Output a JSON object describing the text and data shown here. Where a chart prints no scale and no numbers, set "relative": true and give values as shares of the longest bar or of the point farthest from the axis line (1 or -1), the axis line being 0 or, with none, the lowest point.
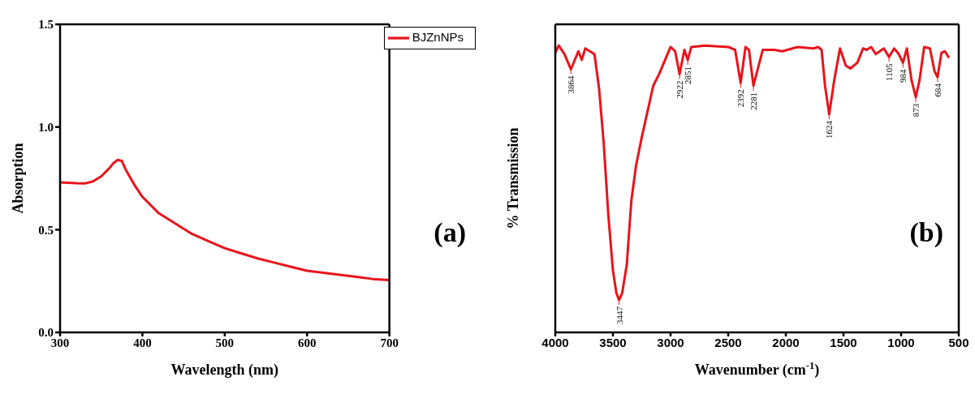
{
  "chart_data": [
    {
      "type": "line",
      "xlabel": "Wavelength (nm)",
      "ylabel": "Absorption",
      "xlim": [
        300,
        700
      ],
      "xticks": [
        300,
        400,
        500,
        600,
        700
      ],
      "ylim": [
        0,
        1.5
      ],
      "yticks": [
        {
          "value": 0,
          "label": "0.0"
        },
        0.5,
        {
          "value": 1,
          "label": "1.0"
        },
        1.5
      ],
      "legend": "top right",
      "annotations": [
        "(a)"
      ],
      "series": [
        {
          "name": "BJZnNPs",
          "color": "#e8141b",
          "x": [
            300,
            320,
            330,
            340,
            350,
            360,
            365,
            370,
            375,
            380,
            390,
            400,
            420,
            440,
            460,
            480,
            500,
            520,
            540,
            560,
            580,
            600,
            620,
            640,
            660,
            680,
            700
          ],
          "values": [
            0.73,
            0.726,
            0.725,
            0.735,
            0.76,
            0.8,
            0.825,
            0.84,
            0.835,
            0.79,
            0.72,
            0.66,
            0.58,
            0.53,
            0.48,
            0.445,
            0.41,
            0.385,
            0.36,
            0.34,
            0.32,
            0.3,
            0.29,
            0.28,
            0.27,
            0.26,
            0.255
          ]
        }
      ]
    },
    {
      "type": "line",
      "xlabel": "Wavenumber (cm$^{-1}$)",
      "ylabel": "% Transmission",
      "relative": true,
      "xlim": [
        4000,
        500
      ],
      "xticks": [
        4000,
        3500,
        3000,
        2500,
        2000,
        1500,
        1000,
        500
      ],
      "annotations": [
        "(b)",
        {
          "text": "3864",
          "x": 3864,
          "y": 0.917
        },
        {
          "text": "3447",
          "x": 3447,
          "y": 0.113
        },
        {
          "text": "2922",
          "x": 2922,
          "y": 0.9
        },
        {
          "text": "2851",
          "x": 2851,
          "y": 0.95
        },
        {
          "text": "2392",
          "x": 2392,
          "y": 0.87
        },
        {
          "text": "2281",
          "x": 2281,
          "y": 0.86
        },
        {
          "text": "1624",
          "x": 1624,
          "y": 0.76
        },
        {
          "text": "1105",
          "x": 1105,
          "y": 0.96
        },
        {
          "text": "984",
          "x": 984,
          "y": 0.94
        },
        {
          "text": "873",
          "x": 873,
          "y": 0.82
        },
        {
          "text": "684",
          "x": 684,
          "y": 0.89
        }
      ],
      "series": [
        {
          "color": "#e8141b",
          "x": [
            4000,
            3970,
            3920,
            3864,
            3800,
            3770,
            3740,
            3700,
            3660,
            3620,
            3580,
            3540,
            3500,
            3470,
            3447,
            3420,
            3380,
            3340,
            3300,
            3250,
            3200,
            3150,
            3100,
            3000,
            2960,
            2922,
            2880,
            2851,
            2820,
            2700,
            2500,
            2440,
            2392,
            2350,
            2320,
            2281,
            2200,
            2100,
            2030,
            1900,
            1760,
            1720,
            1690,
            1660,
            1624,
            1580,
            1530,
            1480,
            1440,
            1380,
            1330,
            1300,
            1260,
            1220,
            1150,
            1105,
            1060,
            1020,
            984,
            950,
            910,
            873,
            840,
            800,
            750,
            710,
            684,
            650,
            620,
            590
          ],
          "values": [
            0.975,
            1.0,
            0.97,
            0.917,
            0.98,
            0.95,
            0.99,
            0.98,
            0.97,
            0.85,
            0.66,
            0.41,
            0.216,
            0.137,
            0.113,
            0.137,
            0.235,
            0.46,
            0.58,
            0.68,
            0.77,
            0.86,
            0.9,
            0.995,
            0.98,
            0.9,
            0.985,
            0.95,
            0.995,
            1.0,
            0.995,
            0.985,
            0.87,
            0.995,
            0.985,
            0.86,
            0.985,
            0.985,
            0.98,
            0.995,
            0.99,
            0.995,
            0.985,
            0.86,
            0.76,
            0.88,
            0.99,
            0.93,
            0.92,
            0.94,
            0.99,
            0.985,
            0.995,
            0.97,
            0.99,
            0.96,
            0.99,
            0.97,
            0.94,
            0.99,
            0.88,
            0.82,
            0.88,
            0.995,
            0.99,
            0.91,
            0.89,
            0.975,
            0.98,
            0.96
          ]
        }
      ]
    }
  ]
}
